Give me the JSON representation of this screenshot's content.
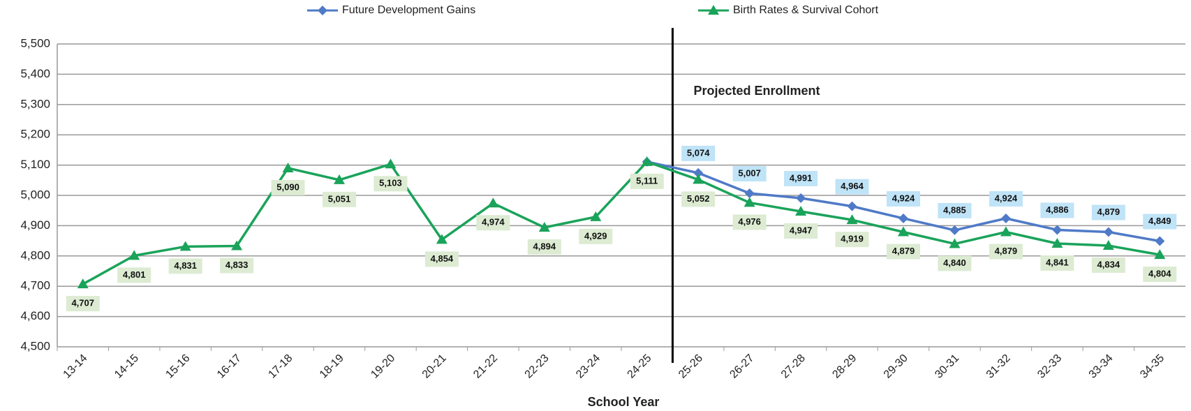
{
  "chart_data": {
    "type": "line",
    "x_label": "School Year",
    "annotation": "Projected Enrollment",
    "categories": [
      "13-14",
      "14-15",
      "15-16",
      "16-17",
      "17-18",
      "18-19",
      "19-20",
      "20-21",
      "21-22",
      "22-23",
      "23-24",
      "24-25",
      "25-26",
      "26-27",
      "27-28",
      "28-29",
      "29-30",
      "30-31",
      "31-32",
      "32-33",
      "33-34",
      "34-35"
    ],
    "series": [
      {
        "name": "Future Development Gains",
        "color": "#4f7ac7",
        "marker": "diamond",
        "label_color": "#bfe3f7",
        "values": [
          null,
          null,
          null,
          null,
          null,
          null,
          null,
          null,
          null,
          null,
          null,
          5111,
          5074,
          5007,
          4991,
          4964,
          4924,
          4885,
          4924,
          4886,
          4879,
          4849
        ],
        "value_labels": [
          null,
          null,
          null,
          null,
          null,
          null,
          null,
          null,
          null,
          null,
          null,
          null,
          "5,074",
          "5,007",
          "4,991",
          "4,964",
          "4,924",
          "4,885",
          "4,924",
          "4,886",
          "4,879",
          "4,849"
        ]
      },
      {
        "name": "Birth Rates & Survival Cohort",
        "color": "#1aa35a",
        "marker": "triangle",
        "label_color": "#dcebd2",
        "values": [
          4707,
          4801,
          4831,
          4833,
          5090,
          5051,
          5103,
          4854,
          4974,
          4894,
          4929,
          5111,
          5052,
          4976,
          4947,
          4919,
          4879,
          4840,
          4879,
          4841,
          4834,
          4804
        ],
        "value_labels": [
          "4,707",
          "4,801",
          "4,831",
          "4,833",
          "5,090",
          "5,051",
          "5,103",
          "4,854",
          "4,974",
          "4,894",
          "4,929",
          "5,111",
          "5,052",
          "4,976",
          "4,947",
          "4,919",
          "4,879",
          "4,840",
          "4,879",
          "4,841",
          "4,834",
          "4,804"
        ]
      }
    ],
    "ylim": [
      4500,
      5500
    ],
    "yticks": [
      {
        "value": 4500,
        "label": "4,500"
      },
      {
        "value": 4600,
        "label": "4,600"
      },
      {
        "value": 4700,
        "label": "4,700"
      },
      {
        "value": 4800,
        "label": "4,800"
      },
      {
        "value": 4900,
        "label": "4,900"
      },
      {
        "value": 5000,
        "label": "5,000"
      },
      {
        "value": 5100,
        "label": "5,100"
      },
      {
        "value": 5200,
        "label": "5,200"
      },
      {
        "value": 5300,
        "label": "5,300"
      },
      {
        "value": 5400,
        "label": "5,400"
      },
      {
        "value": 5500,
        "label": "5,500"
      }
    ],
    "grid": true,
    "legend": "top"
  }
}
